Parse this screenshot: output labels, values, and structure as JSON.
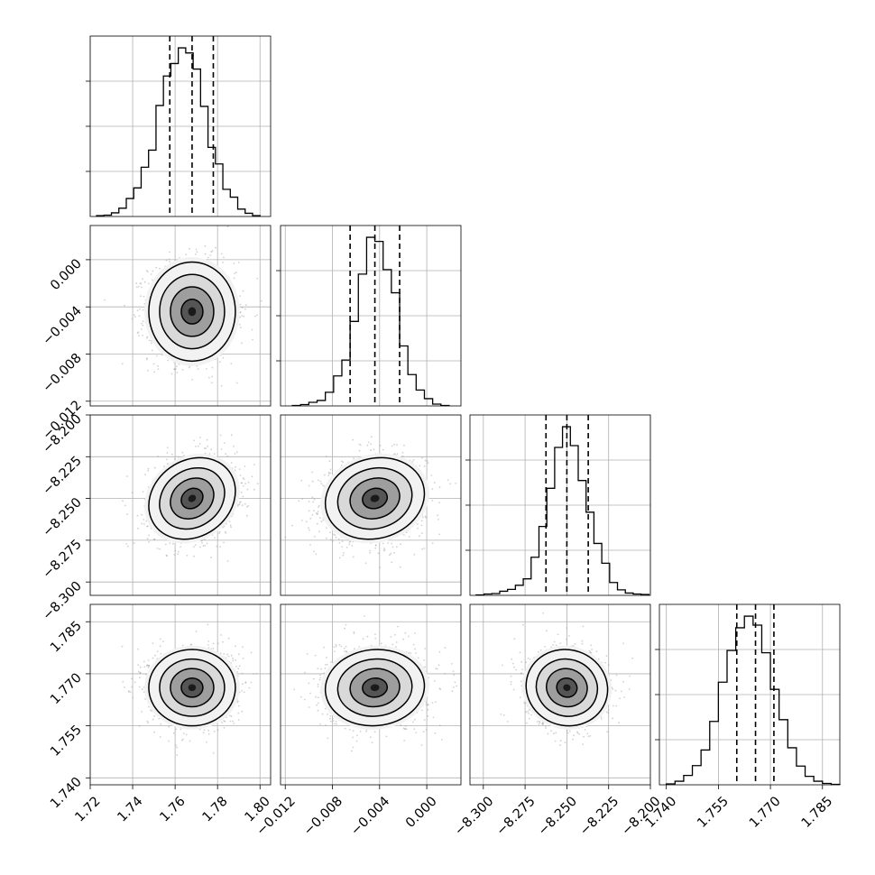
{
  "chart_data": {
    "type": "corner",
    "parameters": [
      {
        "range": [
          1.72,
          1.805
        ],
        "ticks": [
          1.72,
          1.74,
          1.76,
          1.78,
          1.8
        ],
        "tick_labels": [
          "1.72",
          "1.74",
          "1.76",
          "1.78",
          "1.80"
        ],
        "mean": 1.768,
        "sigma": 0.0102,
        "quantiles": [
          1.7575,
          1.768,
          1.778
        ],
        "hist": {
          "edges": [
            1.723,
            1.7265,
            1.73,
            1.7335,
            1.737,
            1.7405,
            1.744,
            1.7475,
            1.751,
            1.7545,
            1.758,
            1.7615,
            1.765,
            1.7685,
            1.772,
            1.7755,
            1.779,
            1.7825,
            1.786,
            1.7895,
            1.793,
            1.7965,
            1.8
          ],
          "counts": [
            2,
            3,
            8,
            18,
            39,
            62,
            107,
            144,
            241,
            305,
            332,
            366,
            355,
            320,
            239,
            150,
            114,
            59,
            42,
            16,
            7,
            2
          ]
        }
      },
      {
        "range": [
          -0.0124,
          0.0029
        ],
        "ticks": [
          -0.012,
          -0.008,
          -0.004,
          0.0
        ],
        "tick_labels": [
          "−0.012",
          "−0.008",
          "−0.004",
          "0.000"
        ],
        "mean": -0.0044,
        "sigma": 0.0021,
        "quantiles": [
          -0.0065,
          -0.0044,
          -0.0023
        ],
        "hist": {
          "edges": [
            -0.0114,
            -0.0107,
            -0.01,
            -0.0093,
            -0.0086,
            -0.0079,
            -0.0072,
            -0.0065,
            -0.0058,
            -0.0051,
            -0.0044,
            -0.0037,
            -0.003,
            -0.0023,
            -0.0016,
            -0.0009,
            -0.0002,
            0.0005,
            0.0012,
            0.0019
          ],
          "counts": [
            1,
            3,
            8,
            12,
            30,
            66,
            101,
            186,
            290,
            371,
            362,
            300,
            249,
            132,
            69,
            35,
            16,
            4,
            1
          ]
        }
      },
      {
        "range": [
          -8.308,
          -8.2
        ],
        "ticks": [
          -8.3,
          -8.275,
          -8.25,
          -8.225,
          -8.2
        ],
        "tick_labels": [
          "−8.300",
          "−8.275",
          "−8.250",
          "−8.225",
          "−8.200"
        ],
        "mean": -8.25,
        "sigma": 0.0122,
        "quantiles": [
          -8.2625,
          -8.25,
          -8.2372
        ],
        "hist": {
          "edges": [
            -8.3043,
            -8.2996,
            -8.2949,
            -8.2902,
            -8.2855,
            -8.2808,
            -8.2761,
            -8.2714,
            -8.2667,
            -8.262,
            -8.2573,
            -8.2526,
            -8.2479,
            -8.2432,
            -8.2385,
            -8.2338,
            -8.2291,
            -8.2244,
            -8.2197,
            -8.215,
            -8.2103,
            -8.2056,
            -8.2009
          ],
          "counts": [
            1,
            3,
            4,
            9,
            13,
            22,
            36,
            83,
            150,
            233,
            322,
            367,
            326,
            250,
            181,
            113,
            70,
            28,
            12,
            5,
            3,
            2
          ]
        }
      },
      {
        "range": [
          1.738,
          1.79
        ],
        "ticks": [
          1.74,
          1.755,
          1.77,
          1.785
        ],
        "tick_labels": [
          "1.740",
          "1.755",
          "1.770",
          "1.785"
        ],
        "mean": 1.766,
        "sigma": 0.0055,
        "quantiles": [
          1.7603,
          1.7657,
          1.771
        ],
        "hist": {
          "edges": [
            1.74,
            1.7425,
            1.745,
            1.7475,
            1.75,
            1.7525,
            1.755,
            1.7575,
            1.76,
            1.7625,
            1.765,
            1.7675,
            1.77,
            1.7725,
            1.775,
            1.7775,
            1.78,
            1.7825,
            1.785,
            1.7875,
            1.79
          ],
          "counts": [
            2,
            8,
            21,
            43,
            78,
            142,
            230,
            301,
            352,
            378,
            358,
            296,
            214,
            146,
            83,
            42,
            19,
            8,
            3,
            1
          ]
        }
      }
    ],
    "pair_correlations": [
      {
        "pair": [
          0,
          1
        ],
        "rho": 0.0
      },
      {
        "pair": [
          0,
          2
        ],
        "rho": 0.18
      },
      {
        "pair": [
          1,
          2
        ],
        "rho": 0.12
      },
      {
        "pair": [
          0,
          3
        ],
        "rho": 0.0
      },
      {
        "pair": [
          1,
          3
        ],
        "rho": 0.05
      },
      {
        "pair": [
          2,
          3
        ],
        "rho": -0.05
      }
    ],
    "contour_levels_sigma": [
      0.5,
      1.0,
      1.5,
      2.0
    ],
    "grid": true,
    "histogram_style": "step",
    "quantile_line_style": "dashed",
    "colors": {
      "contour": "#000000",
      "points": "#9a9a9a",
      "grid": "#b0b0b0"
    }
  }
}
